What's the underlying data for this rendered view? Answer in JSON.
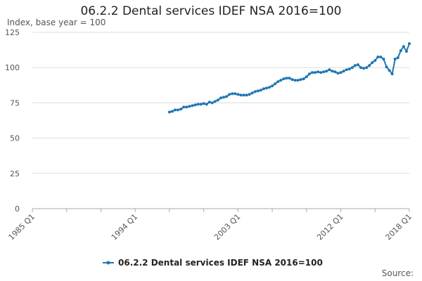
{
  "chart_data": {
    "type": "line",
    "title": "06.2.2 Dental services IDEF NSA 2016=100",
    "ylabel": "Index, base year = 100",
    "xlabel": "",
    "source_label": "Source:",
    "ylim": [
      0,
      125
    ],
    "yticks": [
      0,
      25,
      50,
      75,
      100,
      125
    ],
    "xticks": [
      "1985 Q1",
      "1994 Q1",
      "2003 Q1",
      "2012 Q1",
      "2018 Q1"
    ],
    "xrange": [
      "1985 Q1",
      "2018 Q1"
    ],
    "grid": "horizontal",
    "legend_position": "bottom",
    "colors": {
      "series": "#1f77b4",
      "grid": "#dddddd",
      "axis": "#aaaaaa"
    },
    "series": [
      {
        "name": "06.2.2 Dental services IDEF NSA 2016=100",
        "x": [
          "1997 Q1",
          "1997 Q2",
          "1997 Q3",
          "1997 Q4",
          "1998 Q1",
          "1998 Q2",
          "1998 Q3",
          "1998 Q4",
          "1999 Q1",
          "1999 Q2",
          "1999 Q3",
          "1999 Q4",
          "2000 Q1",
          "2000 Q2",
          "2000 Q3",
          "2000 Q4",
          "2001 Q1",
          "2001 Q2",
          "2001 Q3",
          "2001 Q4",
          "2002 Q1",
          "2002 Q2",
          "2002 Q3",
          "2002 Q4",
          "2003 Q1",
          "2003 Q2",
          "2003 Q3",
          "2003 Q4",
          "2004 Q1",
          "2004 Q2",
          "2004 Q3",
          "2004 Q4",
          "2005 Q1",
          "2005 Q2",
          "2005 Q3",
          "2005 Q4",
          "2006 Q1",
          "2006 Q2",
          "2006 Q3",
          "2006 Q4",
          "2007 Q1",
          "2007 Q2",
          "2007 Q3",
          "2007 Q4",
          "2008 Q1",
          "2008 Q2",
          "2008 Q3",
          "2008 Q4",
          "2009 Q1",
          "2009 Q2",
          "2009 Q3",
          "2009 Q4",
          "2010 Q1",
          "2010 Q2",
          "2010 Q3",
          "2010 Q4",
          "2011 Q1",
          "2011 Q2",
          "2011 Q3",
          "2011 Q4",
          "2012 Q1",
          "2012 Q2",
          "2012 Q3",
          "2012 Q4",
          "2013 Q1",
          "2013 Q2",
          "2013 Q3",
          "2013 Q4",
          "2014 Q1",
          "2014 Q2",
          "2014 Q3",
          "2014 Q4",
          "2015 Q1",
          "2015 Q2",
          "2015 Q3",
          "2015 Q4",
          "2016 Q1",
          "2016 Q2",
          "2016 Q3",
          "2016 Q4",
          "2017 Q1",
          "2017 Q2",
          "2017 Q3",
          "2017 Q4",
          "2018 Q1"
        ],
        "values": [
          68.5,
          69,
          70,
          70,
          70.5,
          72,
          72,
          72.5,
          73,
          73.5,
          74,
          74,
          74.5,
          74,
          75.5,
          75,
          76,
          77,
          78.5,
          79,
          79.5,
          81,
          81.5,
          81.5,
          81,
          80.5,
          80.5,
          80.5,
          81,
          82,
          83,
          83.5,
          84,
          85,
          85.5,
          86,
          87,
          88.5,
          90,
          91,
          92,
          92.5,
          92.5,
          91.5,
          91,
          91,
          91.5,
          92,
          93.5,
          95.5,
          96.5,
          96.5,
          97,
          96.5,
          97,
          97.5,
          98.5,
          97.5,
          97,
          96,
          96.5,
          97.5,
          98.5,
          99,
          100,
          101.5,
          102,
          100,
          99.5,
          100,
          101.5,
          103.5,
          105,
          107.5,
          107.5,
          106,
          100.5,
          98,
          95.5,
          106,
          107,
          112,
          115,
          111.5,
          117
        ]
      }
    ]
  }
}
